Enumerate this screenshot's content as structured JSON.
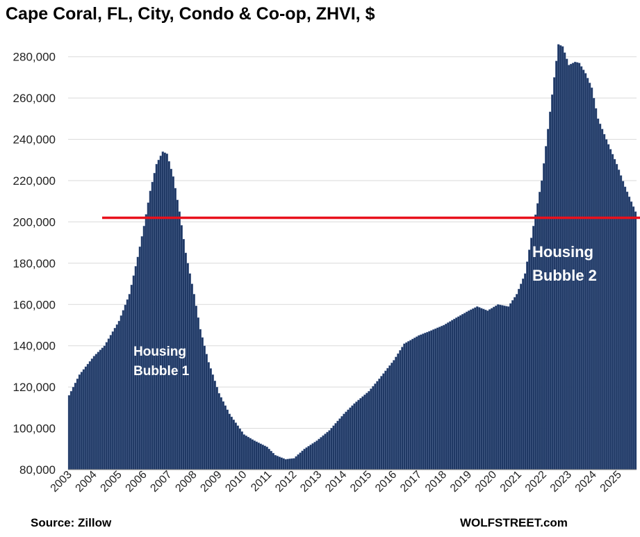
{
  "chart_data": {
    "type": "bar",
    "title": "Cape Coral, FL, City, Condo & Co-op, ZHVI, $",
    "xlabel": "",
    "ylabel": "",
    "ylim": [
      80000,
      290000
    ],
    "yticks": [
      80000,
      100000,
      120000,
      140000,
      160000,
      180000,
      200000,
      220000,
      240000,
      260000,
      280000
    ],
    "ytick_labels": [
      "80,000",
      "100,000",
      "120,000",
      "140,000",
      "160,000",
      "180,000",
      "200,000",
      "220,000",
      "240,000",
      "260,000",
      "280,000"
    ],
    "xtick_labels": [
      "2003",
      "2004",
      "2005",
      "2006",
      "2007",
      "2008",
      "2009",
      "2010",
      "2011",
      "2012",
      "2013",
      "2014",
      "2015",
      "2016",
      "2017",
      "2018",
      "2019",
      "2020",
      "2021",
      "2022",
      "2023",
      "2024",
      "2025"
    ],
    "grid": true,
    "start": "2003-01",
    "frequency": "monthly",
    "anchors": [
      [
        "2003-01",
        116000
      ],
      [
        "2003-06",
        126000
      ],
      [
        "2004-01",
        135000
      ],
      [
        "2004-06",
        140000
      ],
      [
        "2005-01",
        152000
      ],
      [
        "2005-06",
        165000
      ],
      [
        "2005-10",
        183000
      ],
      [
        "2006-01",
        198000
      ],
      [
        "2006-04",
        215000
      ],
      [
        "2006-07",
        228000
      ],
      [
        "2006-10",
        234000
      ],
      [
        "2006-12",
        233000
      ],
      [
        "2007-03",
        222000
      ],
      [
        "2007-06",
        205000
      ],
      [
        "2007-09",
        185000
      ],
      [
        "2008-01",
        165000
      ],
      [
        "2008-04",
        148000
      ],
      [
        "2008-08",
        132000
      ],
      [
        "2009-01",
        117000
      ],
      [
        "2009-06",
        107000
      ],
      [
        "2010-01",
        97000
      ],
      [
        "2010-06",
        94000
      ],
      [
        "2010-12",
        91000
      ],
      [
        "2011-04",
        87000
      ],
      [
        "2011-09",
        85000
      ],
      [
        "2012-01",
        85500
      ],
      [
        "2012-06",
        90000
      ],
      [
        "2012-12",
        94000
      ],
      [
        "2013-06",
        99000
      ],
      [
        "2014-01",
        107000
      ],
      [
        "2014-06",
        112000
      ],
      [
        "2015-01",
        118000
      ],
      [
        "2015-06",
        124000
      ],
      [
        "2016-01",
        133000
      ],
      [
        "2016-06",
        141000
      ],
      [
        "2017-01",
        145000
      ],
      [
        "2017-06",
        147000
      ],
      [
        "2018-01",
        150000
      ],
      [
        "2018-06",
        153000
      ],
      [
        "2019-01",
        157000
      ],
      [
        "2019-05",
        159000
      ],
      [
        "2019-10",
        157000
      ],
      [
        "2020-03",
        160000
      ],
      [
        "2020-08",
        159000
      ],
      [
        "2020-12",
        165000
      ],
      [
        "2021-04",
        175000
      ],
      [
        "2021-08",
        198000
      ],
      [
        "2021-12",
        220000
      ],
      [
        "2022-03",
        245000
      ],
      [
        "2022-06",
        270000
      ],
      [
        "2022-08",
        286000
      ],
      [
        "2022-10",
        285000
      ],
      [
        "2023-01",
        276000
      ],
      [
        "2023-04",
        277500
      ],
      [
        "2023-06",
        277000
      ],
      [
        "2023-09",
        272000
      ],
      [
        "2023-12",
        265000
      ],
      [
        "2024-03",
        250000
      ],
      [
        "2024-07",
        240000
      ],
      [
        "2024-12",
        228000
      ],
      [
        "2025-04",
        217000
      ],
      [
        "2025-09",
        205000
      ]
    ],
    "reference_line": 202000
  },
  "annotations": {
    "bubble1_line1": "Housing",
    "bubble1_line2": "Bubble 1",
    "bubble2_line1": "Housing",
    "bubble2_line2": "Bubble 2"
  },
  "footer": {
    "source": "Source: Zillow",
    "brand": "WOLFSTREET.com"
  },
  "colors": {
    "bar": "#1f3864",
    "bar_edge": "#6f86b0",
    "reference_line": "#e8111c",
    "grid": "#d9d9d9"
  }
}
